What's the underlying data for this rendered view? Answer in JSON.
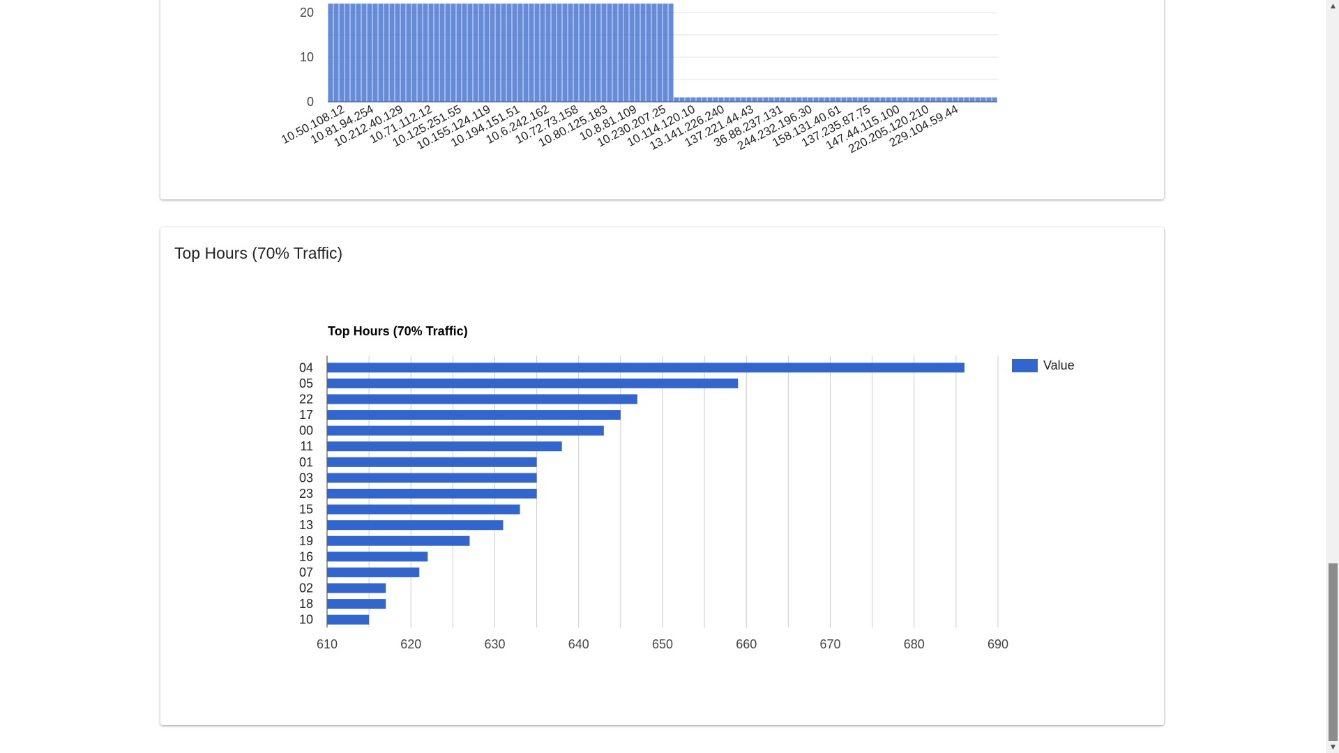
{
  "top_card": {
    "chart_data": {
      "type": "bar",
      "y_ticks": [
        "0",
        "10",
        "20"
      ],
      "ylim": [
        0,
        22
      ],
      "x_tick_labels": [
        "10.50.108.12",
        "10.81.94.254",
        "10.212.40.129",
        "10.71.112.12",
        "10.125.251.55",
        "10.155.124.119",
        "10.194.151.51",
        "10.6.242.162",
        "10.72.73.158",
        "10.80.125.183",
        "10.8.81.109",
        "10.230.207.25",
        "10.114.120.10",
        "13.141.226.240",
        "137.221.44.43",
        "36.88.237.131",
        "244.232.196.30",
        "158.131.40.61",
        "137.235.87.75",
        "147.44.115.100",
        "220.205.120.210",
        "229.104.59.44"
      ],
      "bar_count": 120,
      "high_bar_count": 62,
      "high_value": 22,
      "low_value": 1,
      "color": "#3366cc"
    }
  },
  "bottom_card": {
    "title": "Top Hours (70% Traffic)",
    "chart_data": {
      "type": "bar",
      "orientation": "horizontal",
      "title": "Top Hours (70% Traffic)",
      "categories": [
        "04",
        "05",
        "22",
        "17",
        "00",
        "11",
        "01",
        "03",
        "23",
        "15",
        "13",
        "19",
        "16",
        "07",
        "02",
        "18",
        "10"
      ],
      "series": [
        {
          "name": "Value",
          "values": [
            686,
            659,
            647,
            645,
            643,
            638,
            635,
            635,
            635,
            633,
            631,
            627,
            622,
            621,
            617,
            617,
            615
          ]
        }
      ],
      "xlim": [
        610,
        690
      ],
      "x_ticks": [
        610,
        620,
        630,
        640,
        650,
        660,
        670,
        680,
        690
      ],
      "legend_position": "right",
      "grid": true,
      "color": "#3366cc"
    }
  },
  "scrollbar": {
    "up_icon": "triangle-up-icon",
    "down_icon": "triangle-down-icon"
  }
}
